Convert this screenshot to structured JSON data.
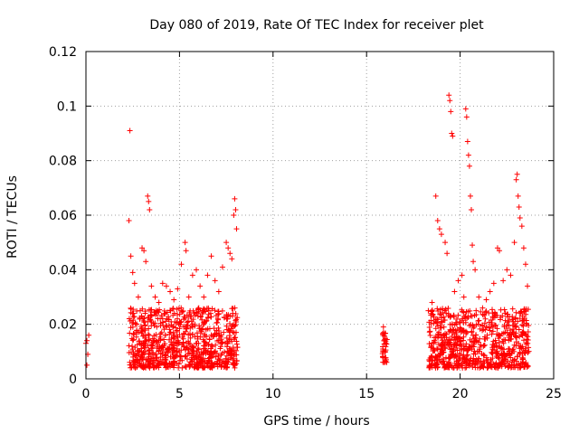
{
  "chart_data": {
    "type": "scatter",
    "title": "Day 080 of 2019, Rate Of TEC Index for receiver plet",
    "xlabel": "GPS time / hours",
    "ylabel": "ROTI / TECUs",
    "xlim": [
      0,
      25
    ],
    "ylim": [
      0,
      0.12
    ],
    "x_ticks": [
      0,
      5,
      10,
      15,
      20,
      25
    ],
    "x_tick_labels": [
      "0",
      "5",
      "10",
      "15",
      "20",
      "25"
    ],
    "y_ticks": [
      0,
      0.02,
      0.04,
      0.06,
      0.08,
      0.1,
      0.12
    ],
    "y_tick_labels": [
      "0",
      "0.02",
      "0.04",
      "0.06",
      "0.08",
      "0.1",
      "0.12"
    ],
    "grid": true,
    "marker": "+",
    "color": "#ff0000",
    "series": [
      {
        "name": "ROTI",
        "points": [
          [
            0.0,
            0.013
          ],
          [
            0.05,
            0.014
          ],
          [
            0.1,
            0.009
          ],
          [
            0.15,
            0.016
          ],
          [
            0.05,
            0.005
          ],
          [
            2.3,
            0.058
          ],
          [
            2.35,
            0.091
          ],
          [
            2.4,
            0.045
          ],
          [
            2.5,
            0.039
          ],
          [
            2.6,
            0.035
          ],
          [
            2.7,
            0.02
          ],
          [
            2.8,
            0.03
          ],
          [
            2.9,
            0.025
          ],
          [
            3.0,
            0.048
          ],
          [
            3.1,
            0.047
          ],
          [
            3.2,
            0.043
          ],
          [
            3.3,
            0.067
          ],
          [
            3.35,
            0.065
          ],
          [
            3.4,
            0.062
          ],
          [
            3.5,
            0.034
          ],
          [
            3.7,
            0.03
          ],
          [
            3.9,
            0.028
          ],
          [
            4.1,
            0.035
          ],
          [
            4.3,
            0.034
          ],
          [
            4.5,
            0.032
          ],
          [
            4.7,
            0.029
          ],
          [
            4.9,
            0.033
          ],
          [
            5.1,
            0.042
          ],
          [
            5.3,
            0.05
          ],
          [
            5.35,
            0.047
          ],
          [
            5.5,
            0.03
          ],
          [
            5.7,
            0.038
          ],
          [
            5.9,
            0.04
          ],
          [
            6.1,
            0.034
          ],
          [
            6.3,
            0.03
          ],
          [
            6.5,
            0.038
          ],
          [
            6.7,
            0.045
          ],
          [
            6.9,
            0.036
          ],
          [
            7.1,
            0.032
          ],
          [
            7.3,
            0.041
          ],
          [
            7.5,
            0.05
          ],
          [
            7.6,
            0.048
          ],
          [
            7.7,
            0.046
          ],
          [
            7.8,
            0.044
          ],
          [
            7.9,
            0.06
          ],
          [
            7.95,
            0.066
          ],
          [
            8.0,
            0.062
          ],
          [
            8.05,
            0.055
          ],
          [
            15.9,
            0.019
          ],
          [
            15.95,
            0.014
          ],
          [
            16.0,
            0.01
          ],
          [
            16.05,
            0.007
          ],
          [
            18.3,
            0.025
          ],
          [
            18.5,
            0.028
          ],
          [
            18.7,
            0.067
          ],
          [
            18.8,
            0.058
          ],
          [
            18.9,
            0.055
          ],
          [
            19.0,
            0.053
          ],
          [
            19.2,
            0.05
          ],
          [
            19.3,
            0.046
          ],
          [
            19.4,
            0.104
          ],
          [
            19.45,
            0.102
          ],
          [
            19.5,
            0.098
          ],
          [
            19.55,
            0.09
          ],
          [
            19.6,
            0.089
          ],
          [
            19.7,
            0.032
          ],
          [
            19.9,
            0.036
          ],
          [
            20.1,
            0.038
          ],
          [
            20.2,
            0.03
          ],
          [
            20.3,
            0.099
          ],
          [
            20.35,
            0.096
          ],
          [
            20.4,
            0.087
          ],
          [
            20.45,
            0.082
          ],
          [
            20.5,
            0.078
          ],
          [
            20.55,
            0.067
          ],
          [
            20.6,
            0.062
          ],
          [
            20.65,
            0.049
          ],
          [
            20.7,
            0.043
          ],
          [
            20.8,
            0.04
          ],
          [
            21.0,
            0.03
          ],
          [
            21.2,
            0.026
          ],
          [
            21.4,
            0.029
          ],
          [
            21.6,
            0.032
          ],
          [
            21.8,
            0.035
          ],
          [
            22.0,
            0.048
          ],
          [
            22.1,
            0.047
          ],
          [
            22.3,
            0.036
          ],
          [
            22.5,
            0.04
          ],
          [
            22.7,
            0.038
          ],
          [
            22.9,
            0.05
          ],
          [
            23.0,
            0.073
          ],
          [
            23.05,
            0.075
          ],
          [
            23.1,
            0.067
          ],
          [
            23.15,
            0.063
          ],
          [
            23.2,
            0.059
          ],
          [
            23.3,
            0.056
          ],
          [
            23.4,
            0.048
          ],
          [
            23.5,
            0.042
          ],
          [
            23.6,
            0.034
          ]
        ],
        "dense_bands": [
          {
            "x_range": [
              2.3,
              8.1
            ],
            "y_range": [
              0.004,
              0.026
            ]
          },
          {
            "x_range": [
              15.85,
              16.1
            ],
            "y_range": [
              0.006,
              0.017
            ]
          },
          {
            "x_range": [
              18.3,
              23.7
            ],
            "y_range": [
              0.004,
              0.026
            ]
          }
        ]
      }
    ]
  }
}
